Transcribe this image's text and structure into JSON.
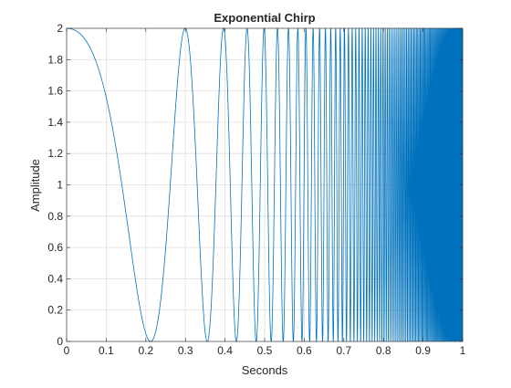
{
  "chart_data": {
    "type": "line",
    "title": "Exponential Chirp",
    "xlabel": "Seconds",
    "ylabel": "Amplitude",
    "xlim": [
      0,
      1
    ],
    "ylim": [
      0,
      2
    ],
    "x_ticks": [
      0,
      0.1,
      0.2,
      0.3,
      0.4,
      0.5,
      0.6,
      0.7,
      0.8,
      0.9,
      1
    ],
    "x_tick_labels": [
      "0",
      "0.1",
      "0.2",
      "0.3",
      "0.4",
      "0.5",
      "0.6",
      "0.7",
      "0.8",
      "0.9",
      "1"
    ],
    "y_ticks": [
      0,
      0.2,
      0.4,
      0.6,
      0.8,
      1,
      1.2,
      1.4,
      1.6,
      1.8,
      2
    ],
    "y_tick_labels": [
      "0",
      "0.2",
      "0.4",
      "0.6",
      "0.8",
      "1",
      "1.2",
      "1.4",
      "1.6",
      "1.8",
      "2"
    ],
    "grid": true,
    "line_color": "#0072BD",
    "series": [
      {
        "description_points": [
          {
            "x": 0.0,
            "y": 2.0
          },
          {
            "x": 0.212,
            "y": 0.0
          },
          {
            "x": 0.298,
            "y": 2.0
          },
          {
            "x": 0.354,
            "y": 0.0
          },
          {
            "x": 0.39,
            "y": 2.0
          },
          {
            "x": 0.425,
            "y": 0.0
          },
          {
            "x": 0.44,
            "y": 2.0
          }
        ]
      }
    ]
  }
}
